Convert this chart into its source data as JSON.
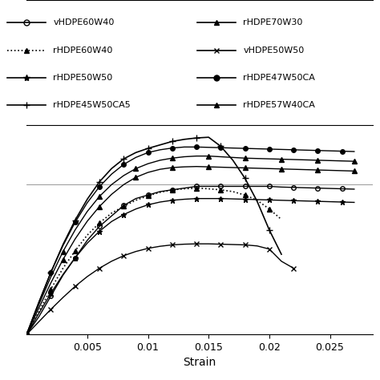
{
  "xlabel": "Strain",
  "xlim": [
    0,
    0.0285
  ],
  "xticks": [
    0.005,
    0.01,
    0.015,
    0.02,
    0.025
  ],
  "background_color": "#ffffff",
  "hline_y": 0.43,
  "legend_entries": [
    {
      "label": "vHDPE60W40",
      "linestyle": "-",
      "marker": "o",
      "mfc": "none",
      "ms": 5
    },
    {
      "label": "rHDPE60W40",
      "linestyle": ":",
      "marker": "^",
      "mfc": "#000",
      "ms": 4
    },
    {
      "label": "rHDPE50W50",
      "linestyle": "-",
      "marker": "*",
      "mfc": "#000",
      "ms": 6
    },
    {
      "label": "rHDPE45W50CA5",
      "linestyle": "-",
      "marker": "+",
      "mfc": "#000",
      "ms": 6
    },
    {
      "label": "rHDPE70W30",
      "linestyle": "-",
      "marker": "^",
      "mfc": "#000",
      "ms": 4
    },
    {
      "label": "vHDPE50W50",
      "linestyle": "-",
      "marker": "x",
      "mfc": "#000",
      "ms": 5
    },
    {
      "label": "rHDPE47W50CA",
      "linestyle": "-",
      "marker": "o",
      "mfc": "#000",
      "ms": 5
    },
    {
      "label": "rHDPE57W40CA",
      "linestyle": "-",
      "marker": "^",
      "mfc": "#000",
      "ms": 4
    }
  ],
  "series": [
    {
      "label": "vHDPE60W40",
      "linestyle": "-",
      "marker": "o",
      "mfc": "none",
      "ms": 4,
      "lw": 1.0,
      "markevery": 2,
      "x": [
        0.0,
        0.001,
        0.002,
        0.003,
        0.004,
        0.005,
        0.006,
        0.007,
        0.008,
        0.009,
        0.01,
        0.011,
        0.012,
        0.013,
        0.014,
        0.015,
        0.016,
        0.017,
        0.018,
        0.019,
        0.02,
        0.021,
        0.022,
        0.023,
        0.024,
        0.025,
        0.026,
        0.027
      ],
      "y": [
        0,
        0.05,
        0.11,
        0.17,
        0.22,
        0.27,
        0.31,
        0.34,
        0.37,
        0.39,
        0.4,
        0.41,
        0.415,
        0.42,
        0.425,
        0.425,
        0.425,
        0.425,
        0.425,
        0.425,
        0.425,
        0.423,
        0.422,
        0.421,
        0.42,
        0.419,
        0.418,
        0.417
      ]
    },
    {
      "label": "rHDPE60W40",
      "linestyle": ":",
      "marker": "^",
      "mfc": "#000000",
      "ms": 4,
      "lw": 1.2,
      "markevery": 2,
      "x": [
        0.0,
        0.001,
        0.002,
        0.003,
        0.004,
        0.005,
        0.006,
        0.007,
        0.008,
        0.009,
        0.01,
        0.011,
        0.012,
        0.013,
        0.014,
        0.015,
        0.016,
        0.017,
        0.018,
        0.019,
        0.02,
        0.021
      ],
      "y": [
        0,
        0.065,
        0.13,
        0.19,
        0.24,
        0.285,
        0.32,
        0.348,
        0.368,
        0.385,
        0.398,
        0.408,
        0.415,
        0.418,
        0.42,
        0.418,
        0.415,
        0.41,
        0.4,
        0.385,
        0.36,
        0.33
      ]
    },
    {
      "label": "rHDPE50W50",
      "linestyle": "-",
      "marker": "*",
      "mfc": "#000000",
      "ms": 5,
      "lw": 1.0,
      "markevery": 2,
      "x": [
        0.0,
        0.001,
        0.002,
        0.003,
        0.004,
        0.005,
        0.006,
        0.007,
        0.008,
        0.009,
        0.01,
        0.011,
        0.012,
        0.013,
        0.014,
        0.015,
        0.016,
        0.017,
        0.018,
        0.019,
        0.02,
        0.021,
        0.022,
        0.023,
        0.024,
        0.025,
        0.026,
        0.027
      ],
      "y": [
        0,
        0.06,
        0.118,
        0.172,
        0.22,
        0.262,
        0.296,
        0.324,
        0.344,
        0.36,
        0.372,
        0.38,
        0.385,
        0.388,
        0.39,
        0.39,
        0.39,
        0.389,
        0.388,
        0.387,
        0.386,
        0.385,
        0.384,
        0.383,
        0.382,
        0.381,
        0.38,
        0.379
      ]
    },
    {
      "label": "rHDPE45W50CA5",
      "linestyle": "-",
      "marker": "+",
      "mfc": "#000000",
      "ms": 6,
      "lw": 1.2,
      "markevery": 2,
      "x": [
        0.0,
        0.001,
        0.002,
        0.003,
        0.004,
        0.005,
        0.006,
        0.007,
        0.008,
        0.009,
        0.01,
        0.011,
        0.012,
        0.013,
        0.014,
        0.015,
        0.016,
        0.017,
        0.018,
        0.019,
        0.02,
        0.021
      ],
      "y": [
        0,
        0.09,
        0.178,
        0.258,
        0.328,
        0.388,
        0.438,
        0.476,
        0.504,
        0.522,
        0.534,
        0.544,
        0.554,
        0.56,
        0.564,
        0.566,
        0.54,
        0.5,
        0.448,
        0.382,
        0.3,
        0.23
      ]
    },
    {
      "label": "rHDPE70W30",
      "linestyle": "-",
      "marker": "^",
      "mfc": "#000000",
      "ms": 4,
      "lw": 1.0,
      "markevery": 3,
      "x": [
        0.0,
        0.001,
        0.002,
        0.003,
        0.004,
        0.005,
        0.006,
        0.007,
        0.008,
        0.009,
        0.01,
        0.011,
        0.012,
        0.013,
        0.014,
        0.015,
        0.016,
        0.017,
        0.018,
        0.019,
        0.02,
        0.021,
        0.022,
        0.023,
        0.024,
        0.025,
        0.026,
        0.027
      ],
      "y": [
        0,
        0.085,
        0.165,
        0.238,
        0.3,
        0.353,
        0.396,
        0.43,
        0.456,
        0.476,
        0.49,
        0.5,
        0.506,
        0.51,
        0.512,
        0.512,
        0.51,
        0.508,
        0.506,
        0.505,
        0.504,
        0.503,
        0.502,
        0.501,
        0.5,
        0.499,
        0.498,
        0.497
      ]
    },
    {
      "label": "vHDPE50W50",
      "linestyle": "-",
      "marker": "x",
      "mfc": "#000000",
      "ms": 5,
      "lw": 1.0,
      "markevery": 2,
      "x": [
        0.0,
        0.001,
        0.002,
        0.003,
        0.004,
        0.005,
        0.006,
        0.007,
        0.008,
        0.009,
        0.01,
        0.011,
        0.012,
        0.013,
        0.014,
        0.015,
        0.016,
        0.017,
        0.018,
        0.019,
        0.02,
        0.021,
        0.022
      ],
      "y": [
        0,
        0.036,
        0.072,
        0.106,
        0.138,
        0.166,
        0.19,
        0.21,
        0.226,
        0.238,
        0.247,
        0.253,
        0.257,
        0.259,
        0.26,
        0.26,
        0.259,
        0.258,
        0.257,
        0.254,
        0.245,
        0.21,
        0.19
      ]
    },
    {
      "label": "rHDPE47W50CA",
      "linestyle": "-",
      "marker": "o",
      "mfc": "#000000",
      "ms": 4,
      "lw": 1.0,
      "markevery": 2,
      "x": [
        0.0,
        0.001,
        0.002,
        0.003,
        0.004,
        0.005,
        0.006,
        0.007,
        0.008,
        0.009,
        0.01,
        0.011,
        0.012,
        0.013,
        0.014,
        0.015,
        0.016,
        0.017,
        0.018,
        0.019,
        0.02,
        0.021,
        0.022,
        0.023,
        0.024,
        0.025,
        0.026,
        0.027
      ],
      "y": [
        0,
        0.092,
        0.178,
        0.255,
        0.322,
        0.378,
        0.424,
        0.46,
        0.488,
        0.508,
        0.522,
        0.53,
        0.535,
        0.538,
        0.538,
        0.537,
        0.536,
        0.535,
        0.534,
        0.533,
        0.532,
        0.531,
        0.53,
        0.529,
        0.528,
        0.527,
        0.526,
        0.525
      ]
    },
    {
      "label": "rHDPE57W40CA",
      "linestyle": "-",
      "marker": "^",
      "mfc": "#000000",
      "ms": 4,
      "lw": 1.0,
      "markevery": 3,
      "x": [
        0.0,
        0.001,
        0.002,
        0.003,
        0.004,
        0.005,
        0.006,
        0.007,
        0.008,
        0.009,
        0.01,
        0.011,
        0.012,
        0.013,
        0.014,
        0.015,
        0.016,
        0.017,
        0.018,
        0.019,
        0.02,
        0.021,
        0.022,
        0.023,
        0.024,
        0.025,
        0.026,
        0.027
      ],
      "y": [
        0,
        0.075,
        0.148,
        0.215,
        0.274,
        0.325,
        0.367,
        0.402,
        0.43,
        0.451,
        0.465,
        0.474,
        0.479,
        0.481,
        0.482,
        0.481,
        0.48,
        0.479,
        0.478,
        0.477,
        0.476,
        0.475,
        0.474,
        0.473,
        0.472,
        0.471,
        0.47,
        0.469
      ]
    }
  ]
}
